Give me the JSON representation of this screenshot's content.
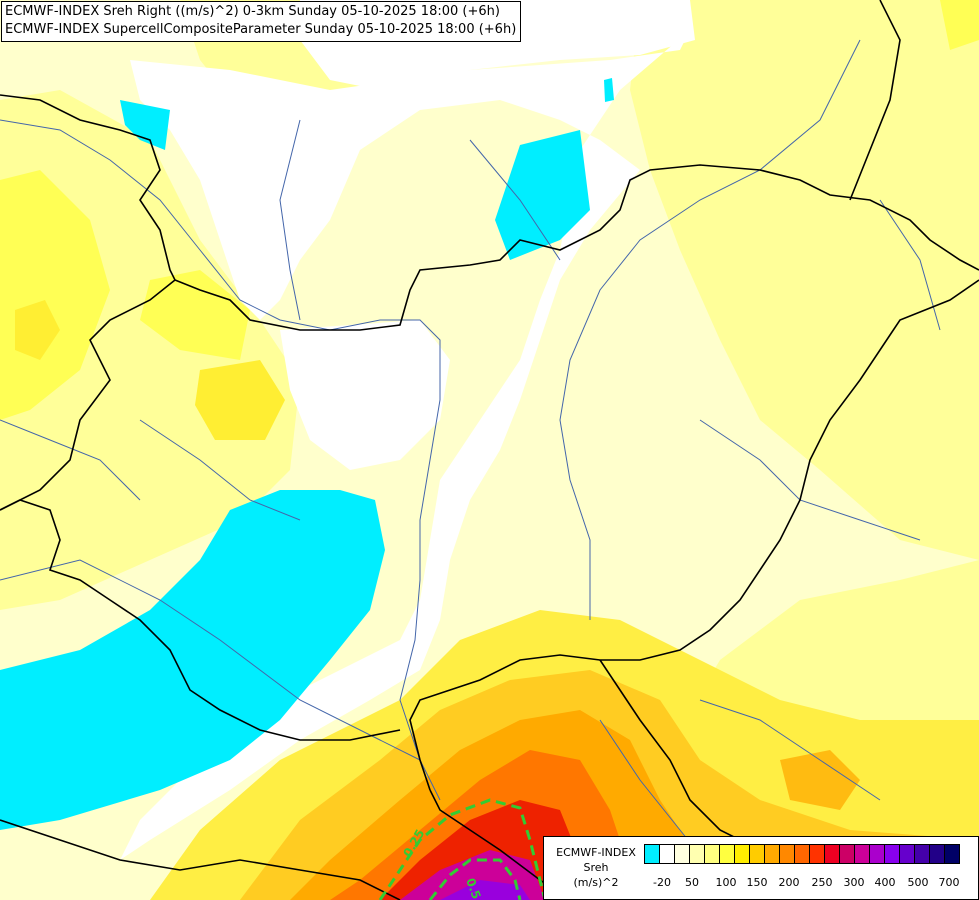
{
  "titles": {
    "line1": "ECMWF-INDEX Sreh Right ((m/s)^2) 0-3km Sunday 05-10-2025 18:00 (+6h)",
    "line2": "ECMWF-INDEX SupercellCompositeParameter Sunday 05-10-2025 18:00 (+6h)"
  },
  "legend": {
    "line1": "ECMWF-INDEX",
    "line2": "Sreh",
    "line3": "(m/s)^2",
    "colors": [
      "#00eeff",
      "#ffffff",
      "#ffffe0",
      "#ffffb0",
      "#ffff80",
      "#ffff40",
      "#ffee00",
      "#ffcc00",
      "#ffaa00",
      "#ff8800",
      "#ff6600",
      "#ff3300",
      "#ee0022",
      "#cc0066",
      "#cc0099",
      "#aa00cc",
      "#8800ee",
      "#6600cc",
      "#4400aa",
      "#220088",
      "#000066"
    ],
    "ticks": [
      "-20",
      "50",
      "100",
      "150",
      "200",
      "250",
      "300",
      "400",
      "500",
      "700"
    ]
  },
  "contour_labels": [
    "0.25",
    "0.5"
  ],
  "colors": {
    "background": "#ffffcc",
    "border": "#000000",
    "river": "#4466aa",
    "contour": "#33cc33"
  }
}
